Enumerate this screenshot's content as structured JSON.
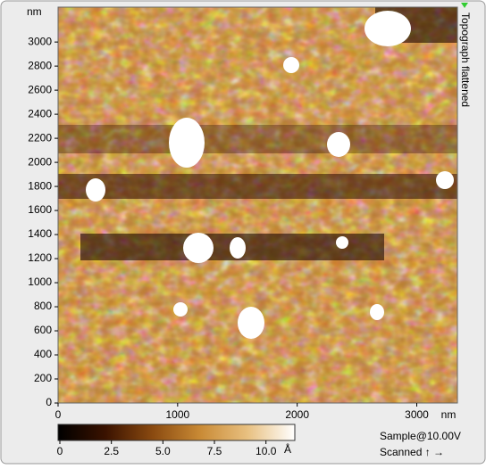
{
  "chart_data": {
    "type": "image",
    "title": "Topograph flattened",
    "x_unit": "nm",
    "y_unit": "nm",
    "xlim": [
      0,
      3340
    ],
    "ylim": [
      0,
      3290
    ],
    "xticks": [
      0,
      1000,
      2000,
      3000
    ],
    "yticks": [
      0,
      200,
      400,
      600,
      800,
      1000,
      1200,
      1400,
      1600,
      1800,
      2000,
      2200,
      2400,
      2600,
      2800,
      3000
    ],
    "colormap": [
      "#000000",
      "#3a1200",
      "#8a4a10",
      "#c98a35",
      "#e8c080",
      "#ffffff"
    ],
    "colorbar_unit": "Å",
    "clim": [
      0,
      11.4
    ],
    "cticks": [
      0,
      2.5,
      {
        "value": 5,
        "label": "5.0"
      },
      {
        "value": 7.5,
        "label": "7.5"
      },
      {
        "value": 10,
        "label": "10.0"
      }
    ],
    "annotations": [
      "Sample@10.00V",
      "Scanned ↑ →"
    ]
  }
}
